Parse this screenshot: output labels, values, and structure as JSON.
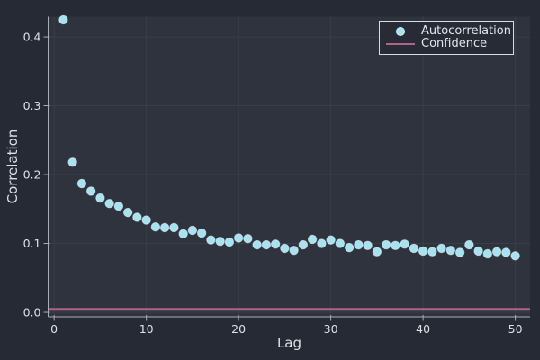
{
  "figure": {
    "background": "#262A34",
    "plot_background": "#2F333D",
    "grid_color": "#3A3E48",
    "axis_color": "#A8ADB8",
    "text_color": "#DDE0E6",
    "legend_background": "#272B35",
    "legend_border": "#D9DCE1"
  },
  "legend": {
    "entries": [
      {
        "label": "Autocorrelation",
        "type": "marker",
        "color": "#A5E3F2"
      },
      {
        "label": "Confidence",
        "type": "line",
        "color": "#B0628C"
      }
    ]
  },
  "chart_data": {
    "type": "scatter",
    "title": "",
    "xlabel": "Lag",
    "ylabel": "Correlation",
    "xlim": [
      -0.65,
      51.6
    ],
    "ylim": [
      -0.0065,
      0.4295
    ],
    "x_ticks": [
      {
        "v": 0,
        "label": "0"
      },
      {
        "v": 10,
        "label": "10"
      },
      {
        "v": 20,
        "label": "20"
      },
      {
        "v": 30,
        "label": "30"
      },
      {
        "v": 40,
        "label": "40"
      },
      {
        "v": 50,
        "label": "50"
      }
    ],
    "y_ticks": [
      {
        "v": 0.0,
        "label": "0.0"
      },
      {
        "v": 0.1,
        "label": "0.1"
      },
      {
        "v": 0.2,
        "label": "0.2"
      },
      {
        "v": 0.3,
        "label": "0.3"
      },
      {
        "v": 0.4,
        "label": "0.4"
      }
    ],
    "grid": true,
    "legend_position": "top-right",
    "series": [
      {
        "name": "Autocorrelation",
        "type": "scatter",
        "marker_color": "#A5E3F2",
        "marker_stroke": "rgba(240,250,252,0.55)",
        "marker_radius": 4.7,
        "x": [
          1,
          2,
          3,
          4,
          5,
          6,
          7,
          8,
          9,
          10,
          11,
          12,
          13,
          14,
          15,
          16,
          17,
          18,
          19,
          20,
          21,
          22,
          23,
          24,
          25,
          26,
          27,
          28,
          29,
          30,
          31,
          32,
          33,
          34,
          35,
          36,
          37,
          38,
          39,
          40,
          41,
          42,
          43,
          44,
          45,
          46,
          47,
          48,
          49,
          50
        ],
        "y": [
          0.425,
          0.218,
          0.187,
          0.176,
          0.166,
          0.158,
          0.154,
          0.145,
          0.138,
          0.134,
          0.124,
          0.123,
          0.123,
          0.114,
          0.119,
          0.115,
          0.105,
          0.103,
          0.102,
          0.108,
          0.107,
          0.098,
          0.098,
          0.099,
          0.093,
          0.09,
          0.098,
          0.106,
          0.1,
          0.105,
          0.1,
          0.094,
          0.098,
          0.097,
          0.088,
          0.098,
          0.097,
          0.099,
          0.093,
          0.089,
          0.088,
          0.093,
          0.09,
          0.087,
          0.098,
          0.089,
          0.085,
          0.088,
          0.087,
          0.082
        ]
      },
      {
        "name": "Confidence",
        "type": "hline",
        "color": "#B0628C",
        "width": 2,
        "y": 0.005
      }
    ]
  }
}
